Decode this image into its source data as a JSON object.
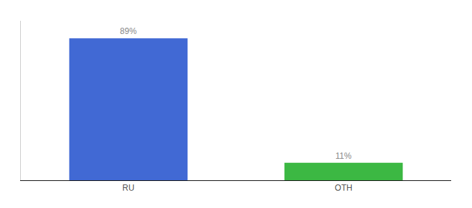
{
  "chart_data": {
    "type": "bar",
    "categories": [
      "RU",
      "OTH"
    ],
    "values": [
      89,
      11
    ],
    "value_labels": [
      "89%",
      "11%"
    ],
    "colors": [
      "#4169d4",
      "#3cb843"
    ],
    "ylim": [
      0,
      100
    ],
    "data_labels": true,
    "tick_labels": "x",
    "grid": false
  }
}
